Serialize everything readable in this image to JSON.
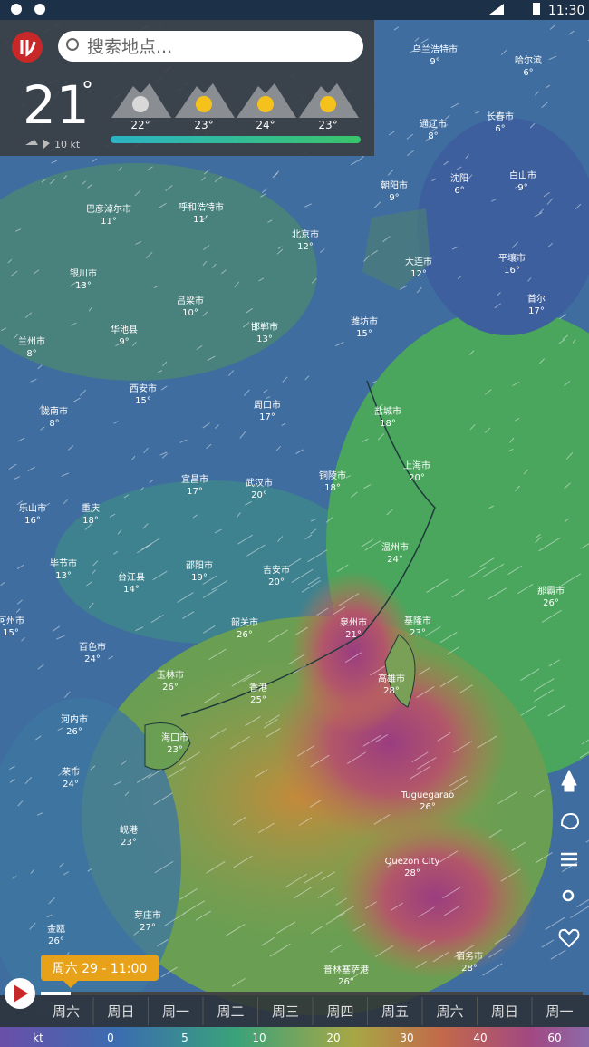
{
  "status_bar": {
    "time": "11:30"
  },
  "search": {
    "placeholder": "搜索地点..."
  },
  "current": {
    "temperature": "21",
    "unit": "°",
    "wind": "10 kt"
  },
  "forecast": [
    "22°",
    "23°",
    "24°",
    "23°"
  ],
  "cities": [
    {
      "name": "乌兰浩特市",
      "temp": "9°"
    },
    {
      "name": "哈尔滨",
      "temp": "6°"
    },
    {
      "name": "通辽市",
      "temp": "8°"
    },
    {
      "name": "长春市",
      "temp": "6°"
    },
    {
      "name": "朝阳市",
      "temp": "9°"
    },
    {
      "name": "沈阳",
      "temp": "6°"
    },
    {
      "name": "白山市",
      "temp": "9°"
    },
    {
      "name": "呼和浩特市",
      "temp": "11°"
    },
    {
      "name": "巴彦淖尔市",
      "temp": "11°"
    },
    {
      "name": "北京市",
      "temp": "12°"
    },
    {
      "name": "大连市",
      "temp": "12°"
    },
    {
      "name": "平壤市",
      "temp": "16°"
    },
    {
      "name": "银川市",
      "temp": "13°"
    },
    {
      "name": "吕梁市",
      "temp": "10°"
    },
    {
      "name": "邯郸市",
      "temp": "13°"
    },
    {
      "name": "潍坊市",
      "temp": "15°"
    },
    {
      "name": "首尔",
      "temp": "17°"
    },
    {
      "name": "兰州市",
      "temp": "8°"
    },
    {
      "name": "华池县",
      "temp": "9°"
    },
    {
      "name": "西安市",
      "temp": "15°"
    },
    {
      "name": "周口市",
      "temp": "17°"
    },
    {
      "name": "盐城市",
      "temp": "18°"
    },
    {
      "name": "陇南市",
      "temp": "8°"
    },
    {
      "name": "宜昌市",
      "temp": "17°"
    },
    {
      "name": "武汉市",
      "temp": "20°"
    },
    {
      "name": "铜陵市",
      "temp": "18°"
    },
    {
      "name": "上海市",
      "temp": "20°"
    },
    {
      "name": "乐山市",
      "temp": "16°"
    },
    {
      "name": "重庆",
      "temp": "18°"
    },
    {
      "name": "毕节市",
      "temp": "13°"
    },
    {
      "name": "台江县",
      "temp": "14°"
    },
    {
      "name": "邵阳市",
      "temp": "19°"
    },
    {
      "name": "吉安市",
      "temp": "20°"
    },
    {
      "name": "温州市",
      "temp": "24°"
    },
    {
      "name": "那霸市",
      "temp": "26°"
    },
    {
      "name": "河州市",
      "temp": "15°"
    },
    {
      "name": "百色市",
      "temp": "24°"
    },
    {
      "name": "韶关市",
      "temp": "26°"
    },
    {
      "name": "泉州市",
      "temp": "21°"
    },
    {
      "name": "基隆市",
      "temp": "23°"
    },
    {
      "name": "高雄市",
      "temp": "28°"
    },
    {
      "name": "玉林市",
      "temp": "26°"
    },
    {
      "name": "香港",
      "temp": "25°"
    },
    {
      "name": "河内市",
      "temp": "26°"
    },
    {
      "name": "海口市",
      "temp": "23°"
    },
    {
      "name": "荣市",
      "temp": "24°"
    },
    {
      "name": "Tuguegarao",
      "temp": "26°"
    },
    {
      "name": "岘港",
      "temp": "23°"
    },
    {
      "name": "Quezon City",
      "temp": "28°"
    },
    {
      "name": "芽庄市",
      "temp": "27°"
    },
    {
      "name": "金瓯",
      "temp": "26°"
    },
    {
      "name": "普林塞萨港",
      "temp": "26°"
    },
    {
      "name": "宿务市",
      "temp": "28°"
    }
  ],
  "timeline": {
    "current": "周六 29 - 11:00",
    "days": [
      "周六",
      "周日",
      "周一",
      "周二",
      "周三",
      "周四",
      "周五",
      "周六",
      "周日",
      "周一"
    ]
  },
  "legend": {
    "unit": "kt",
    "values": [
      "0",
      "5",
      "10",
      "20",
      "30",
      "40",
      "60"
    ]
  }
}
